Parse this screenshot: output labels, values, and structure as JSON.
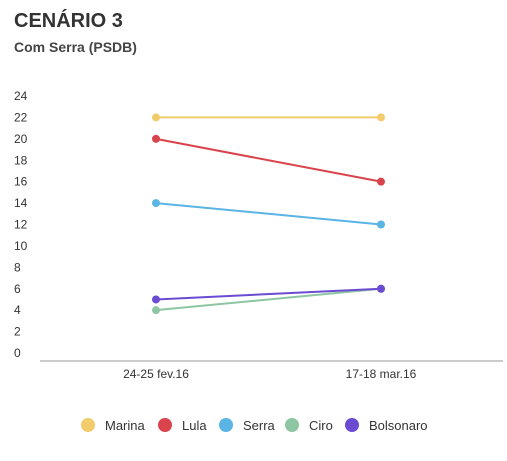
{
  "chart_data": {
    "type": "line",
    "title": "CENÁRIO 3",
    "subtitle": "Com Serra (PSDB)",
    "categories": [
      "24-25 fev.16",
      "17-18 mar.16"
    ],
    "ylim": [
      0,
      24
    ],
    "yticks": [
      0,
      2,
      4,
      6,
      8,
      10,
      12,
      14,
      16,
      18,
      20,
      22,
      24
    ],
    "grid": false,
    "legend_position": "bottom",
    "series": [
      {
        "name": "Marina",
        "color": "#f2cc6b",
        "values": [
          22,
          22
        ]
      },
      {
        "name": "Lula",
        "color": "#d9434c",
        "values": [
          20,
          16
        ]
      },
      {
        "name": "Serra",
        "color": "#5ab4e5",
        "values": [
          14,
          12
        ]
      },
      {
        "name": "Ciro",
        "color": "#8ec5a2",
        "values": [
          4,
          6
        ]
      },
      {
        "name": "Bolsonaro",
        "color": "#6a4bd1",
        "values": [
          5,
          6
        ]
      }
    ]
  }
}
